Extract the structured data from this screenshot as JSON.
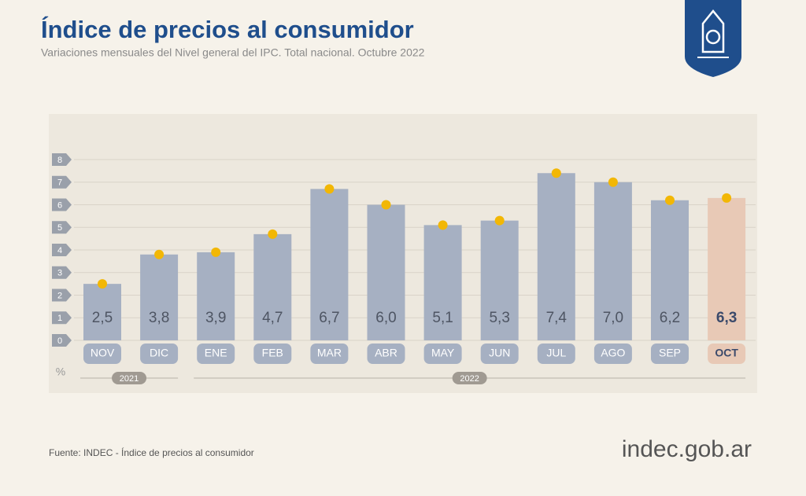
{
  "chart_data": {
    "type": "bar",
    "title": "Índice de precios al consumidor",
    "subtitle": "Variaciones mensuales del Nivel general del IPC. Total nacional. Octubre 2022",
    "y_unit": "%",
    "categories": [
      "NOV",
      "DIC",
      "ENE",
      "FEB",
      "MAR",
      "ABR",
      "MAY",
      "JUN",
      "JUL",
      "AGO",
      "SEP",
      "OCT"
    ],
    "values": [
      2.5,
      3.8,
      3.9,
      4.7,
      6.7,
      6.0,
      5.1,
      5.3,
      7.4,
      7.0,
      6.2,
      6.3
    ],
    "value_labels": [
      "2,5",
      "3,8",
      "3,9",
      "4,7",
      "6,7",
      "6,0",
      "5,1",
      "5,3",
      "7,4",
      "7,0",
      "6,2",
      "6,3"
    ],
    "years": [
      "2021",
      "2022"
    ],
    "ylim": [
      0,
      8
    ],
    "yticks": [
      0,
      1,
      2,
      3,
      4,
      5,
      6,
      7,
      8
    ],
    "grid": true,
    "color": "#a6b0c2",
    "highlight_color": "#e8c9b6",
    "marker_color": "#f2b705",
    "source": "Fuente: INDEC - Índice de precios al consumidor",
    "logo": "indec.gob.ar"
  }
}
